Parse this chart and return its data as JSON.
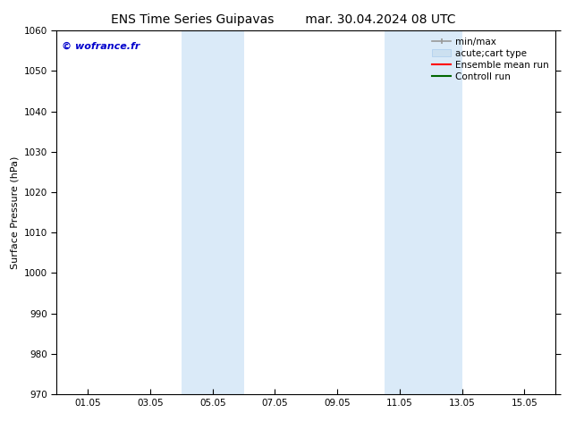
{
  "title_left": "ENS Time Series Guipavas",
  "title_right": "mar. 30.04.2024 08 UTC",
  "ylabel": "Surface Pressure (hPa)",
  "ylim": [
    970,
    1060
  ],
  "yticks": [
    970,
    980,
    990,
    1000,
    1010,
    1020,
    1030,
    1040,
    1050,
    1060
  ],
  "xtick_labels": [
    "01.05",
    "03.05",
    "05.05",
    "07.05",
    "09.05",
    "11.05",
    "13.05",
    "15.05"
  ],
  "xtick_positions": [
    1,
    3,
    5,
    7,
    9,
    11,
    13,
    15
  ],
  "xlim": [
    0,
    16
  ],
  "shaded_regions": [
    {
      "xmin": 4.0,
      "xmax": 6.0
    },
    {
      "xmin": 10.5,
      "xmax": 13.0
    }
  ],
  "shade_color": "#daeaf8",
  "watermark": "© wofrance.fr",
  "watermark_color": "#0000cc",
  "bg_color": "#ffffff",
  "legend_items": [
    {
      "label": "min/max",
      "color": "#aaaaaa",
      "lw": 1.5
    },
    {
      "label": "acute;cart type",
      "color": "#cce0f0",
      "lw": 8
    },
    {
      "label": "Ensemble mean run",
      "color": "#ff0000",
      "lw": 1.5
    },
    {
      "label": "Controll run",
      "color": "#006600",
      "lw": 1.5
    }
  ],
  "title_fontsize": 10,
  "axis_label_fontsize": 8,
  "tick_fontsize": 7.5,
  "legend_fontsize": 7.5,
  "watermark_fontsize": 8
}
